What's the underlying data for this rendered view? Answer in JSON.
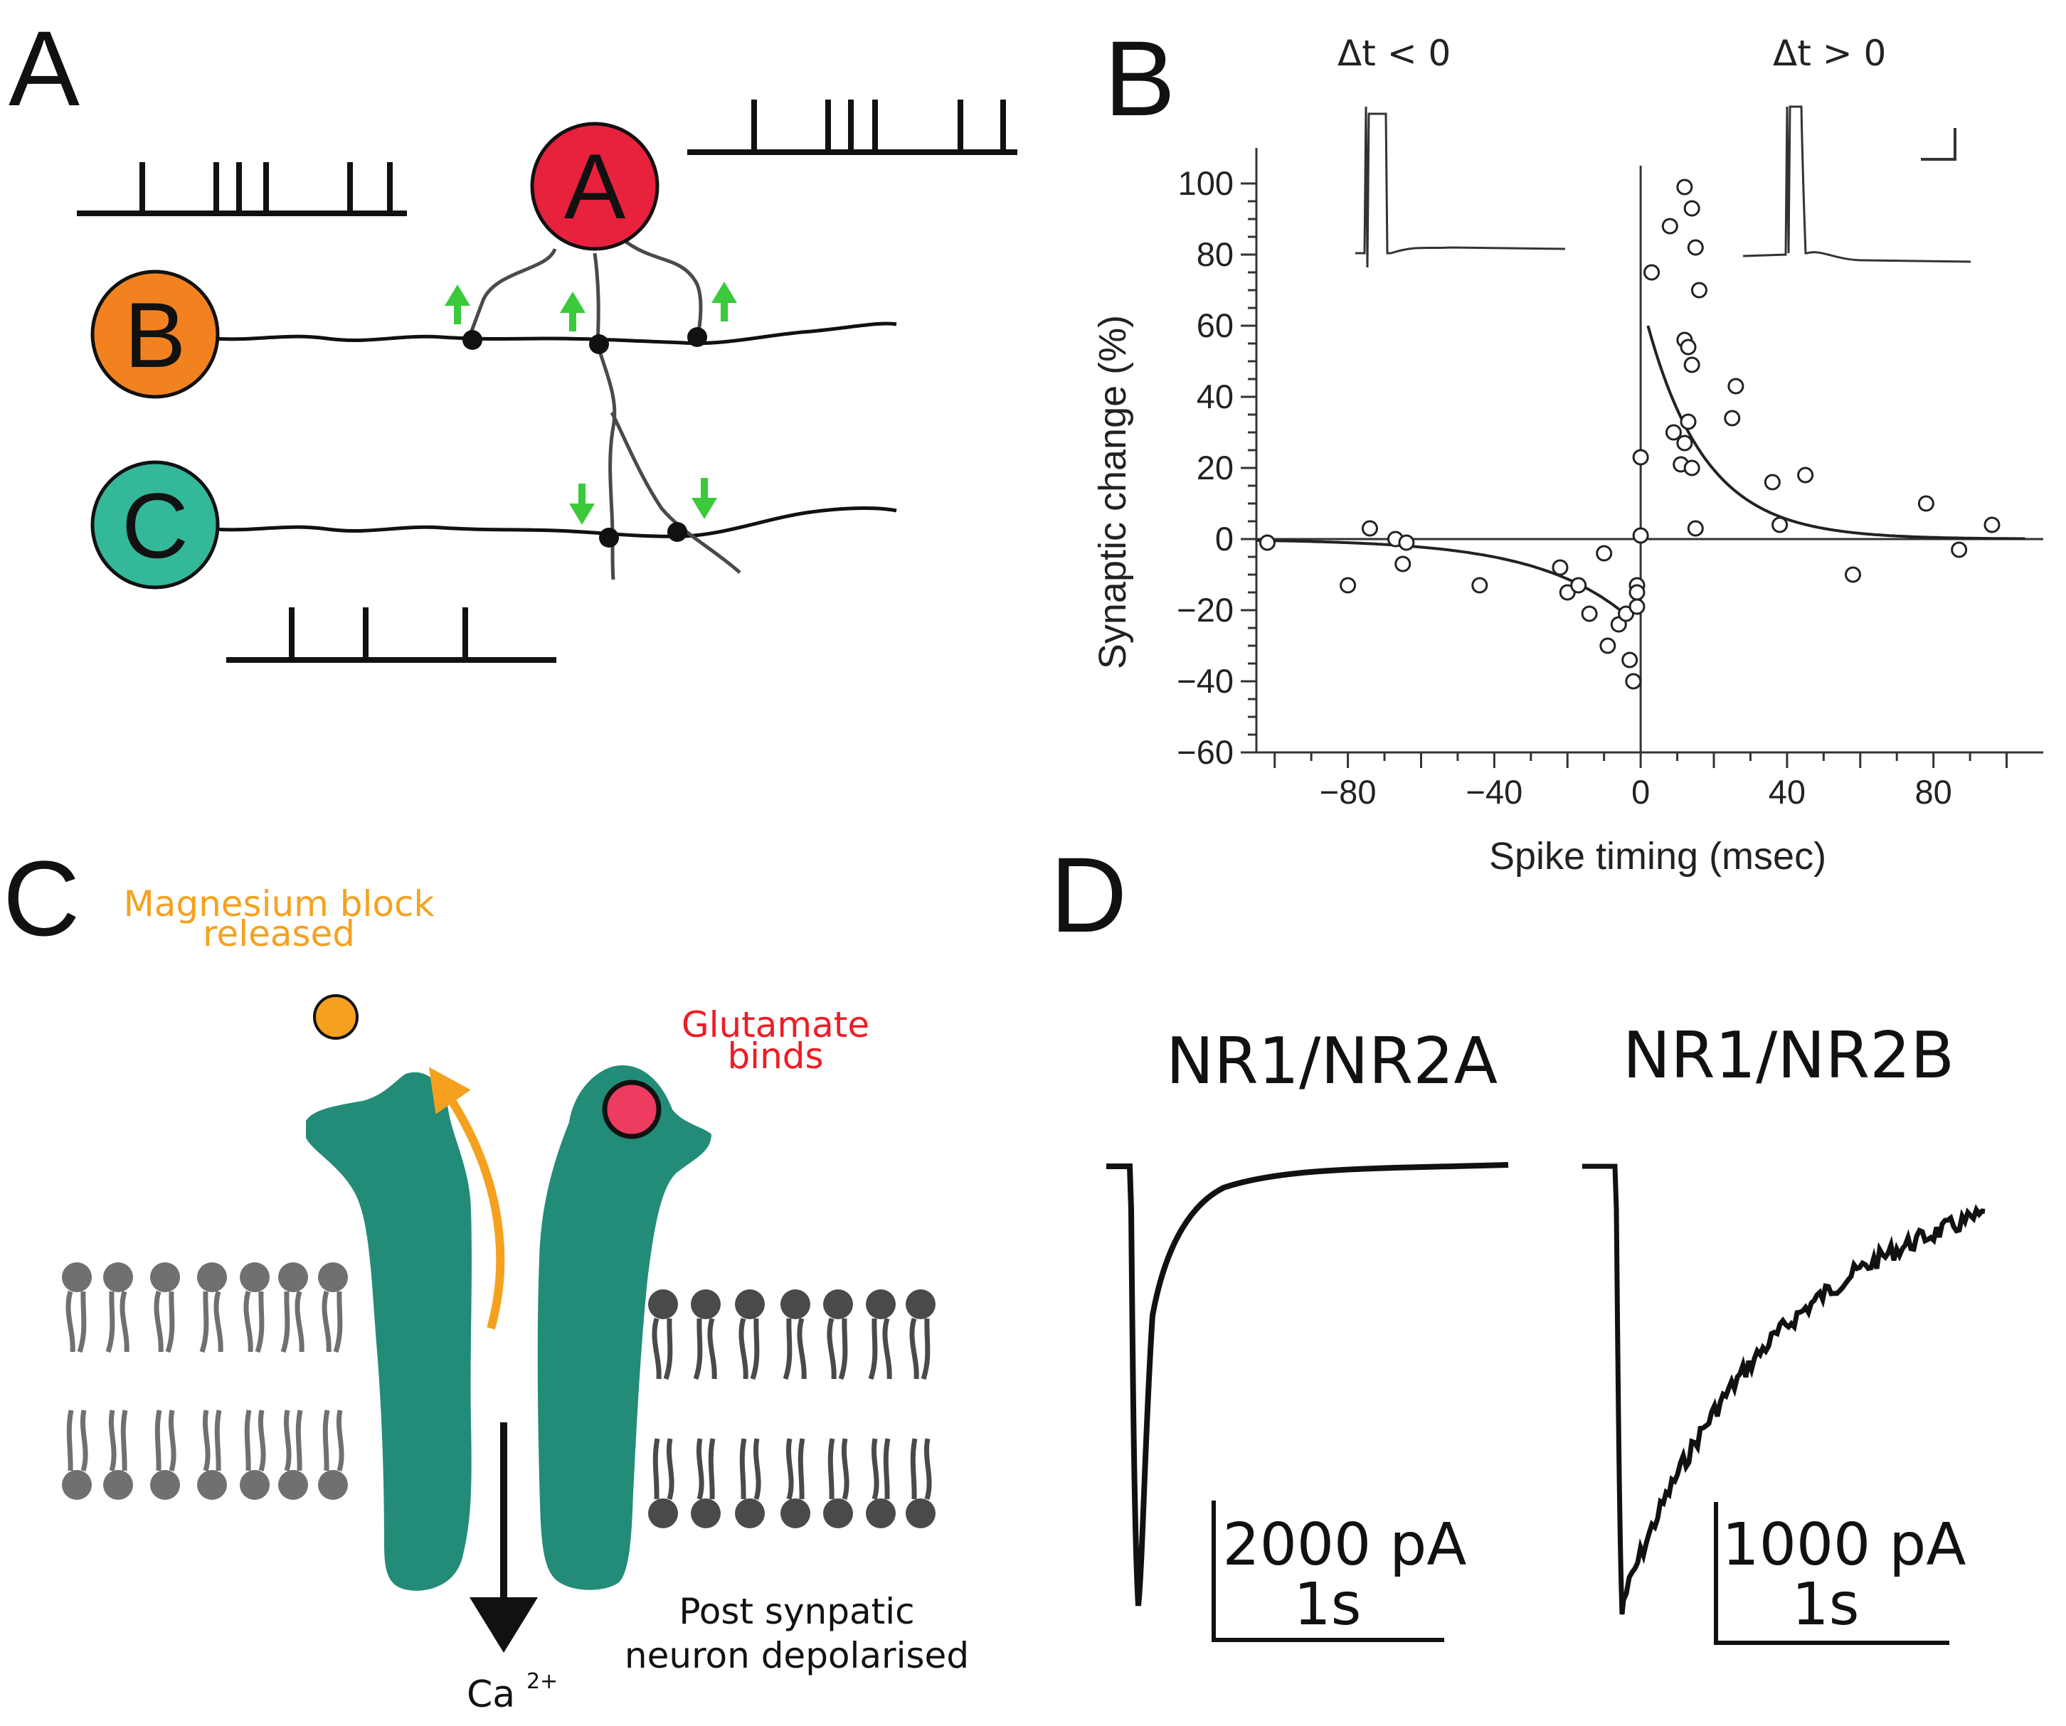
{
  "panel_a": {
    "letter": "A",
    "neurons": {
      "a": "A",
      "b": "B",
      "c": "C"
    },
    "colors": {
      "a": "#e8213d",
      "b": "#f28220",
      "c": "#34b89a",
      "arrow": "#3cc93c"
    }
  },
  "panel_b": {
    "letter": "B",
    "inset_left": "Δt < 0",
    "inset_right": "Δt > 0",
    "chart_data": {
      "type": "scatter",
      "xlabel": "Spike timing (msec)",
      "ylabel": "Synaptic change (%)",
      "xlim": [
        -105,
        110
      ],
      "ylim": [
        -60,
        110
      ],
      "xticks": [
        -80,
        -40,
        0,
        40,
        80
      ],
      "yticks": [
        100,
        80,
        60,
        40,
        20,
        0,
        -20,
        -40,
        -60
      ],
      "points": [
        [
          -102,
          -1
        ],
        [
          -80,
          -13
        ],
        [
          -74,
          3
        ],
        [
          -67,
          0
        ],
        [
          -65,
          -7
        ],
        [
          -64,
          -1
        ],
        [
          -44,
          -13
        ],
        [
          -22,
          -8
        ],
        [
          -20,
          -15
        ],
        [
          -17,
          -13
        ],
        [
          -14,
          -21
        ],
        [
          -10,
          -4
        ],
        [
          -9,
          -30
        ],
        [
          -6,
          -24
        ],
        [
          -4,
          -21
        ],
        [
          -3,
          -34
        ],
        [
          -2,
          -40
        ],
        [
          -1,
          -13
        ],
        [
          -1,
          -15
        ],
        [
          -1,
          -19
        ],
        [
          0,
          1
        ],
        [
          0,
          23
        ],
        [
          3,
          75
        ],
        [
          8,
          88
        ],
        [
          12,
          99
        ],
        [
          14,
          93
        ],
        [
          15,
          82
        ],
        [
          16,
          70
        ],
        [
          12,
          56
        ],
        [
          13,
          54
        ],
        [
          14,
          49
        ],
        [
          9,
          30
        ],
        [
          13,
          33
        ],
        [
          11,
          21
        ],
        [
          14,
          20
        ],
        [
          15,
          3
        ],
        [
          12,
          27
        ],
        [
          26,
          43
        ],
        [
          25,
          34
        ],
        [
          36,
          16
        ],
        [
          38,
          4
        ],
        [
          45,
          18
        ],
        [
          58,
          -10
        ],
        [
          78,
          10
        ],
        [
          87,
          -3
        ],
        [
          96,
          4
        ]
      ],
      "fits": [
        {
          "domain": [
            -105,
            -3
          ],
          "model": "-25*exp(x/25)"
        },
        {
          "domain": [
            2,
            105
          ],
          "model": "68*exp(-x/16)"
        }
      ],
      "grid": false
    }
  },
  "panel_c": {
    "letter": "C",
    "mg_label_line1": "Magnesium block",
    "mg_label_line2": "released",
    "glu_label_line1": "Glutamate",
    "glu_label_line2": "binds",
    "post_label_line1": "Post synpatic",
    "post_label_line2": "neuron depolarised",
    "ion": "Ca",
    "ion_charge": "2+",
    "colors": {
      "channel": "#238c78",
      "mg": "#f5a11f",
      "glutamate": "#ee3b60",
      "lipid_left": "#707070",
      "lipid_right": "#4a4a4a"
    }
  },
  "panel_d": {
    "letter": "D",
    "traces": [
      {
        "title": "NR1/NR2A",
        "scale_current": "2000 pA",
        "scale_time": "1s"
      },
      {
        "title": "NR1/NR2B",
        "scale_current": "1000 pA",
        "scale_time": "1s"
      }
    ]
  }
}
